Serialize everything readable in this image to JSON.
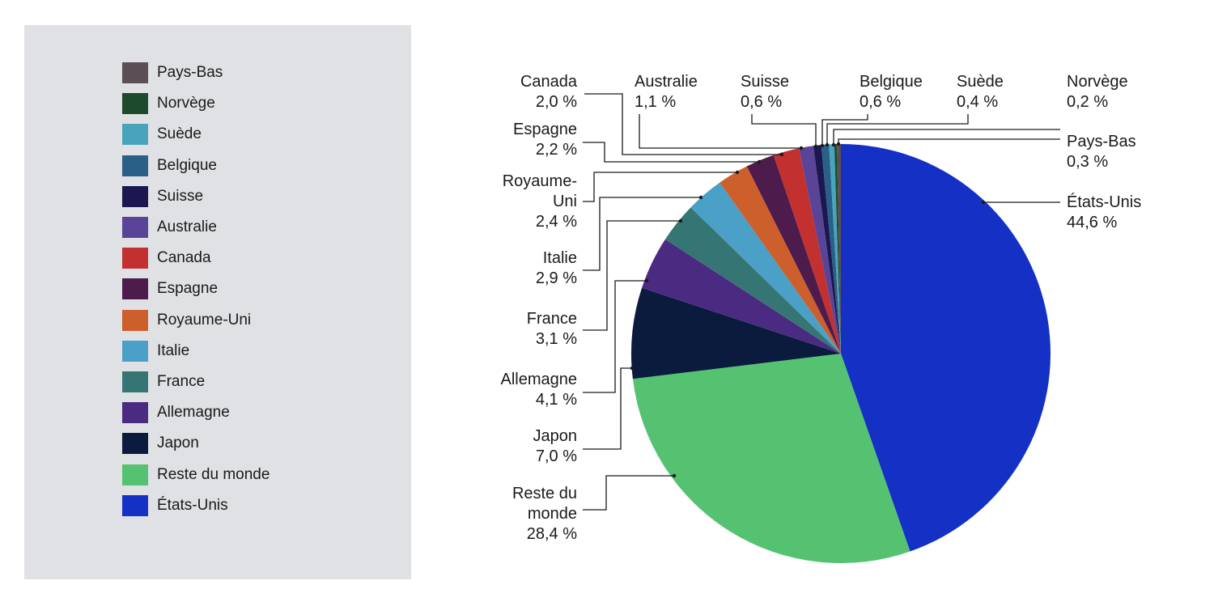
{
  "chart_data": {
    "type": "pie",
    "title": "",
    "slices": [
      {
        "label": "États-Unis",
        "value_label": "44,6 %",
        "value": 44.6,
        "color": "#1530c4"
      },
      {
        "label": "Reste du monde",
        "value_label": "28,4 %",
        "value": 28.4,
        "color": "#55c272"
      },
      {
        "label": "Japon",
        "value_label": "7,0 %",
        "value": 7.0,
        "color": "#0b1b3e"
      },
      {
        "label": "Allemagne",
        "value_label": "4,1 %",
        "value": 4.1,
        "color": "#4b2a82"
      },
      {
        "label": "France",
        "value_label": "3,1 %",
        "value": 3.1,
        "color": "#357674"
      },
      {
        "label": "Italie",
        "value_label": "2,9 %",
        "value": 2.9,
        "color": "#4aa0c6"
      },
      {
        "label": "Royaume-Uni",
        "value_label": "2,4 %",
        "value": 2.4,
        "color": "#cc5f2c"
      },
      {
        "label": "Espagne",
        "value_label": "2,2 %",
        "value": 2.2,
        "color": "#4d1b4c"
      },
      {
        "label": "Canada",
        "value_label": "2,0 %",
        "value": 2.0,
        "color": "#c23030"
      },
      {
        "label": "Australie",
        "value_label": "1,1 %",
        "value": 1.1,
        "color": "#5a4497"
      },
      {
        "label": "Suisse",
        "value_label": "0,6 %",
        "value": 0.6,
        "color": "#1b1850"
      },
      {
        "label": "Belgique",
        "value_label": "0,6 %",
        "value": 0.6,
        "color": "#2a5f88"
      },
      {
        "label": "Suède",
        "value_label": "0,4 %",
        "value": 0.4,
        "color": "#47a4bb"
      },
      {
        "label": "Norvège",
        "value_label": "0,2 %",
        "value": 0.2,
        "color": "#1e4a2c"
      },
      {
        "label": "Pays-Bas",
        "value_label": "0,3 %",
        "value": 0.3,
        "color": "#5b4e55"
      }
    ],
    "legend": {
      "placement": "left",
      "items": [
        "Pays-Bas",
        "Norvège",
        "Suède",
        "Belgique",
        "Suisse",
        "Australie",
        "Canada",
        "Espagne",
        "Royaume-Uni",
        "Italie",
        "France",
        "Allemagne",
        "Japon",
        "Reste du monde",
        "États-Unis"
      ]
    }
  }
}
